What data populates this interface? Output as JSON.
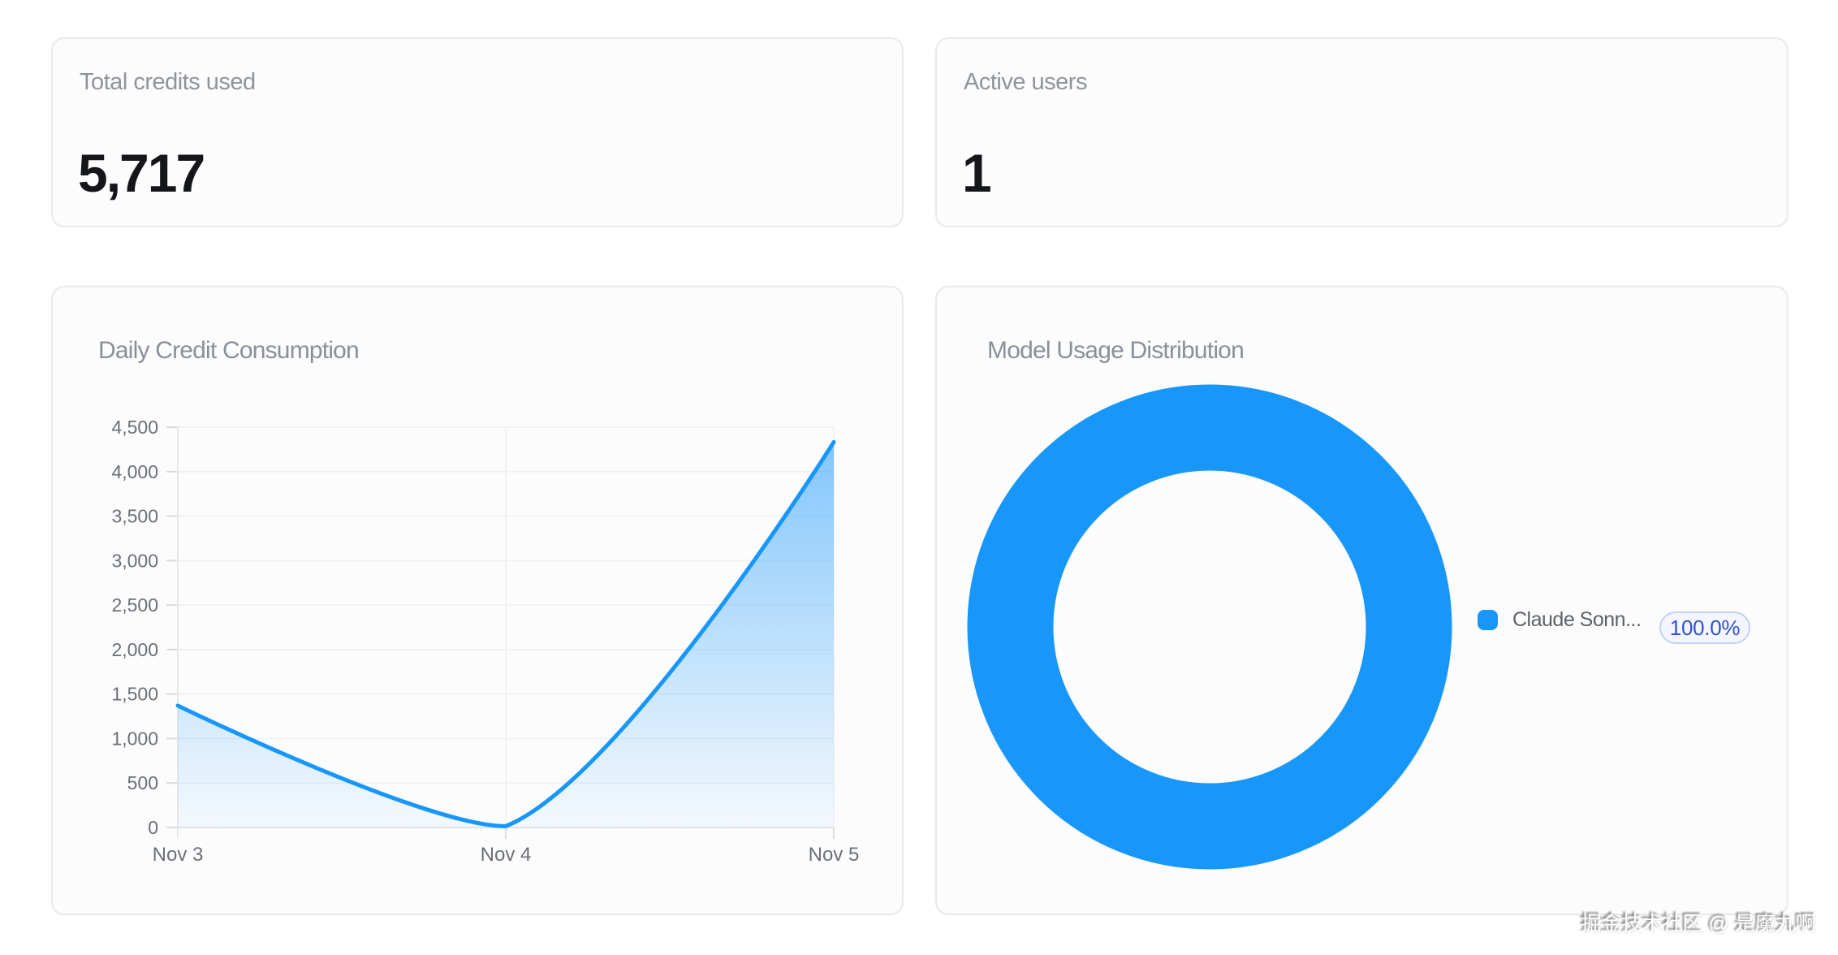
{
  "stats": [
    {
      "title": "Total credits used",
      "value": "5,717"
    },
    {
      "title": "Active users",
      "value": "1"
    }
  ],
  "chart_data": [
    {
      "type": "area",
      "title": "Daily Credit Consumption",
      "x": [
        "Nov 3",
        "Nov 4",
        "Nov 5"
      ],
      "values": [
        1370,
        15,
        4332
      ],
      "ylim": [
        0,
        4500
      ],
      "y_tick_step": 500,
      "y_tick_labels": [
        "0",
        "500",
        "1,000",
        "1,500",
        "2,000",
        "2,500",
        "3,000",
        "3,500",
        "4,000",
        "4,500"
      ],
      "grid": true,
      "legend_position": "none",
      "line_color": "#1897fb",
      "area_fade_top": "rgba(24,151,251,0.53)",
      "area_fade_bottom": "rgba(24,151,251,0.03)"
    },
    {
      "type": "pie",
      "title": "Model Usage Distribution",
      "donut": true,
      "legend_position": "right",
      "segments": [
        {
          "label": "Claude Sonn...",
          "value": 100.0,
          "percent_label": "100.0%",
          "color": "#1897fb"
        }
      ]
    }
  ],
  "watermark": "掘金技术社区 @ 是魔丸啊",
  "colors": {
    "primary_blue": "#1897fb",
    "badge_bg": "#f3f5ff",
    "badge_border": "#c7cff7",
    "badge_text": "#3452cd"
  }
}
